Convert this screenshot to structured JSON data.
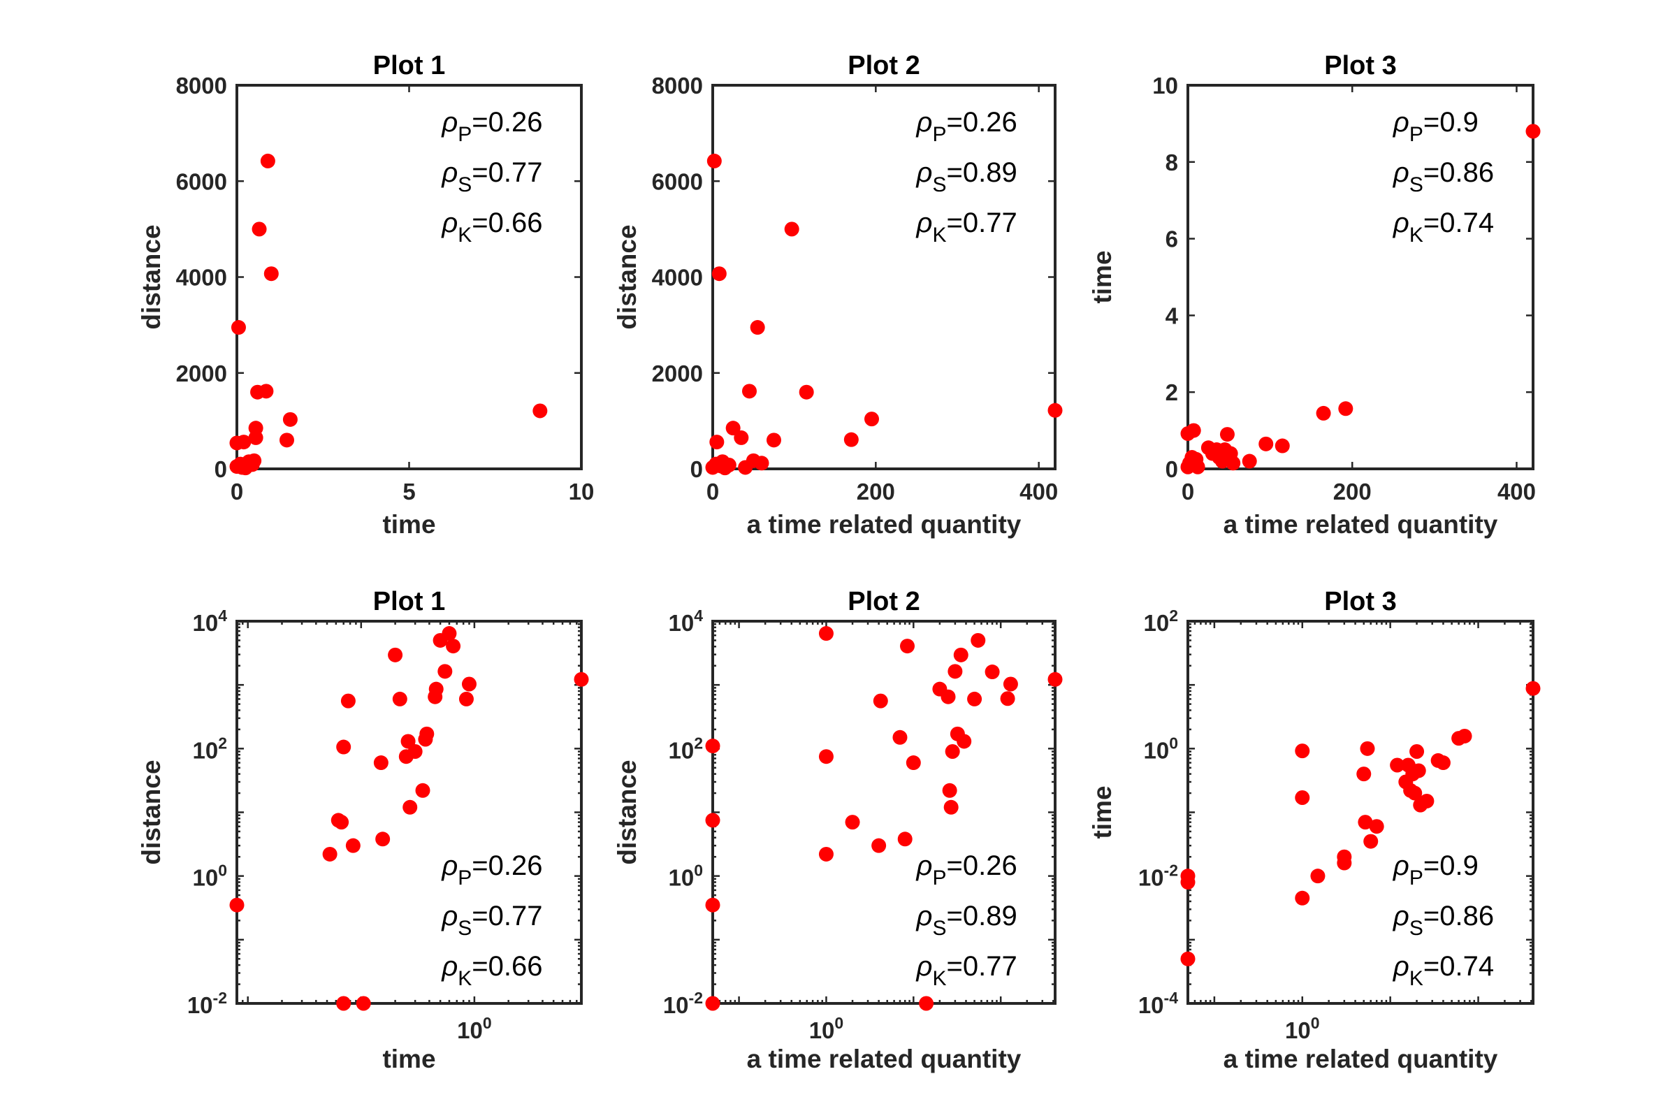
{
  "chart_data": [
    {
      "type": "scatter",
      "title": "Plot 1",
      "xlabel": "time",
      "ylabel": "distance",
      "xscale": "linear",
      "yscale": "linear",
      "xlim": [
        0,
        10
      ],
      "ylim": [
        0,
        8000
      ],
      "xticks": [
        0,
        5,
        10
      ],
      "xticklabels": [
        "0",
        "5",
        "10"
      ],
      "yticks": [
        0,
        2000,
        4000,
        6000,
        8000
      ],
      "yticklabels": [
        "0",
        "2000",
        "4000",
        "6000",
        "8000"
      ],
      "annotation_position": "top-right",
      "correlations": [
        {
          "symbol": "ρ",
          "sub": "P",
          "value": "=0.26"
        },
        {
          "symbol": "ρ",
          "sub": "S",
          "value": "=0.77"
        },
        {
          "symbol": "ρ",
          "sub": "K",
          "value": "=0.66"
        }
      ],
      "series": [
        {
          "name": "data",
          "color": "#ff0000",
          "points": [
            [
              0.0,
              540
            ],
            [
              0.0,
              50
            ],
            [
              0.05,
              2950
            ],
            [
              0.1,
              100
            ],
            [
              0.15,
              30
            ],
            [
              0.2,
              560
            ],
            [
              0.25,
              20
            ],
            [
              0.3,
              80
            ],
            [
              0.35,
              150
            ],
            [
              0.4,
              120
            ],
            [
              0.45,
              90
            ],
            [
              0.5,
              170
            ],
            [
              0.55,
              650
            ],
            [
              0.55,
              850
            ],
            [
              0.6,
              1600
            ],
            [
              0.65,
              5000
            ],
            [
              0.85,
              1620
            ],
            [
              0.9,
              6420
            ],
            [
              1.0,
              4070
            ],
            [
              1.45,
              600
            ],
            [
              1.55,
              1030
            ],
            [
              8.8,
              1210
            ]
          ]
        }
      ]
    },
    {
      "type": "scatter",
      "title": "Plot 2",
      "xlabel": "a time related quantity",
      "ylabel": "distance",
      "xscale": "linear",
      "yscale": "linear",
      "xlim": [
        0,
        420
      ],
      "ylim": [
        0,
        8000
      ],
      "xticks": [
        0,
        200,
        400
      ],
      "xticklabels": [
        "0",
        "200",
        "400"
      ],
      "yticks": [
        0,
        2000,
        4000,
        6000,
        8000
      ],
      "yticklabels": [
        "0",
        "2000",
        "4000",
        "6000",
        "8000"
      ],
      "annotation_position": "top-right",
      "correlations": [
        {
          "symbol": "ρ",
          "sub": "P",
          "value": "=0.26"
        },
        {
          "symbol": "ρ",
          "sub": "S",
          "value": "=0.89"
        },
        {
          "symbol": "ρ",
          "sub": "K",
          "value": "=0.77"
        }
      ],
      "series": [
        {
          "name": "data",
          "color": "#ff0000",
          "points": [
            [
              0,
              30
            ],
            [
              2,
              6420
            ],
            [
              4,
              100
            ],
            [
              5,
              560
            ],
            [
              8,
              4070
            ],
            [
              10,
              60
            ],
            [
              12,
              150
            ],
            [
              15,
              20
            ],
            [
              20,
              80
            ],
            [
              25,
              850
            ],
            [
              35,
              650
            ],
            [
              40,
              30
            ],
            [
              45,
              1620
            ],
            [
              50,
              170
            ],
            [
              55,
              2950
            ],
            [
              60,
              120
            ],
            [
              75,
              600
            ],
            [
              97,
              5000
            ],
            [
              115,
              1600
            ],
            [
              170,
              610
            ],
            [
              195,
              1040
            ],
            [
              420,
              1220
            ]
          ]
        }
      ]
    },
    {
      "type": "scatter",
      "title": "Plot 3",
      "xlabel": "a time related quantity",
      "ylabel": "time",
      "xscale": "linear",
      "yscale": "linear",
      "xlim": [
        0,
        420
      ],
      "ylim": [
        0,
        10
      ],
      "xticks": [
        0,
        200,
        400
      ],
      "xticklabels": [
        "0",
        "200",
        "400"
      ],
      "yticks": [
        0,
        2,
        4,
        6,
        8,
        10
      ],
      "yticklabels": [
        "0",
        "2",
        "4",
        "6",
        "8",
        "10"
      ],
      "annotation_position": "top-right",
      "correlations": [
        {
          "symbol": "ρ",
          "sub": "P",
          "value": "=0.9"
        },
        {
          "symbol": "ρ",
          "sub": "S",
          "value": "=0.86"
        },
        {
          "symbol": "ρ",
          "sub": "K",
          "value": "=0.74"
        }
      ],
      "series": [
        {
          "name": "data",
          "color": "#ff0000",
          "points": [
            [
              0,
              0.92
            ],
            [
              0,
              0.05
            ],
            [
              2,
              0.15
            ],
            [
              5,
              0.3
            ],
            [
              7,
              1.0
            ],
            [
              8,
              0.1
            ],
            [
              10,
              0.25
            ],
            [
              12,
              0.05
            ],
            [
              25,
              0.55
            ],
            [
              30,
              0.4
            ],
            [
              35,
              0.5
            ],
            [
              38,
              0.3
            ],
            [
              42,
              0.2
            ],
            [
              45,
              0.5
            ],
            [
              48,
              0.9
            ],
            [
              52,
              0.4
            ],
            [
              55,
              0.15
            ],
            [
              75,
              0.2
            ],
            [
              95,
              0.65
            ],
            [
              115,
              0.6
            ],
            [
              165,
              1.45
            ],
            [
              192,
              1.57
            ],
            [
              420,
              8.8
            ]
          ]
        }
      ]
    },
    {
      "type": "scatter",
      "title": "Plot 1",
      "xlabel": "time",
      "ylabel": "distance",
      "xscale": "log",
      "yscale": "log",
      "xlim": [
        0.008,
        8.8
      ],
      "ylim": [
        0.01,
        10000
      ],
      "xticks": [
        1
      ],
      "xtick_exponents": [
        {
          "base": "10",
          "exp": "0"
        }
      ],
      "yticks": [
        0.01,
        1,
        100,
        10000
      ],
      "ytick_exponents": [
        {
          "base": "10",
          "exp": "-2"
        },
        {
          "base": "10",
          "exp": "0"
        },
        {
          "base": "10",
          "exp": "2"
        },
        {
          "base": "10",
          "exp": "4"
        }
      ],
      "annotation_position": "bottom-right",
      "correlations": [
        {
          "symbol": "ρ",
          "sub": "P",
          "value": "=0.26"
        },
        {
          "symbol": "ρ",
          "sub": "S",
          "value": "=0.77"
        },
        {
          "symbol": "ρ",
          "sub": "K",
          "value": "=0.66"
        }
      ],
      "series": [
        {
          "name": "data",
          "color": "#ff0000",
          "points": [
            [
              0.008,
              0.35
            ],
            [
              0.053,
              2.2
            ],
            [
              0.063,
              7.5
            ],
            [
              0.067,
              7
            ],
            [
              0.07,
              0.01
            ],
            [
              0.07,
              106
            ],
            [
              0.077,
              560
            ],
            [
              0.085,
              3
            ],
            [
              0.105,
              0.01
            ],
            [
              0.15,
              60
            ],
            [
              0.155,
              3.8
            ],
            [
              0.2,
              2950
            ],
            [
              0.22,
              600
            ],
            [
              0.25,
              75
            ],
            [
              0.26,
              130
            ],
            [
              0.27,
              12
            ],
            [
              0.3,
              90
            ],
            [
              0.35,
              22
            ],
            [
              0.37,
              140
            ],
            [
              0.38,
              170
            ],
            [
              0.45,
              650
            ],
            [
              0.46,
              860
            ],
            [
              0.5,
              5000
            ],
            [
              0.55,
              1630
            ],
            [
              0.6,
              6420
            ],
            [
              0.65,
              4070
            ],
            [
              0.85,
              600
            ],
            [
              0.9,
              1030
            ],
            [
              8.8,
              1220
            ]
          ]
        }
      ]
    },
    {
      "type": "scatter",
      "title": "Plot 2",
      "xlabel": "a time related quantity",
      "ylabel": "distance",
      "xscale": "log",
      "yscale": "log",
      "xlim": [
        0.05,
        420
      ],
      "ylim": [
        0.01,
        10000
      ],
      "xticks": [
        1
      ],
      "xtick_exponents": [
        {
          "base": "10",
          "exp": "0"
        }
      ],
      "yticks": [
        0.01,
        1,
        100,
        10000
      ],
      "ytick_exponents": [
        {
          "base": "10",
          "exp": "-2"
        },
        {
          "base": "10",
          "exp": "0"
        },
        {
          "base": "10",
          "exp": "2"
        },
        {
          "base": "10",
          "exp": "4"
        }
      ],
      "annotation_position": "bottom-right",
      "correlations": [
        {
          "symbol": "ρ",
          "sub": "P",
          "value": "=0.26"
        },
        {
          "symbol": "ρ",
          "sub": "S",
          "value": "=0.89"
        },
        {
          "symbol": "ρ",
          "sub": "K",
          "value": "=0.77"
        }
      ],
      "series": [
        {
          "name": "data",
          "color": "#ff0000",
          "points": [
            [
              0.05,
              0.01
            ],
            [
              0.05,
              0.35
            ],
            [
              0.05,
              7.5
            ],
            [
              0.05,
              110
            ],
            [
              1,
              6420
            ],
            [
              1,
              75
            ],
            [
              1,
              2.2
            ],
            [
              2,
              7
            ],
            [
              4,
              3
            ],
            [
              4.2,
              560
            ],
            [
              7,
              150
            ],
            [
              8,
              3.8
            ],
            [
              8.5,
              4070
            ],
            [
              10,
              60
            ],
            [
              14,
              0.01
            ],
            [
              20,
              860
            ],
            [
              25,
              650
            ],
            [
              26,
              22
            ],
            [
              27,
              12
            ],
            [
              28,
              90
            ],
            [
              30,
              1630
            ],
            [
              32,
              170
            ],
            [
              35,
              2950
            ],
            [
              38,
              130
            ],
            [
              50,
              600
            ],
            [
              55,
              5000
            ],
            [
              80,
              1600
            ],
            [
              120,
              610
            ],
            [
              130,
              1030
            ],
            [
              420,
              1220
            ]
          ]
        }
      ]
    },
    {
      "type": "scatter",
      "title": "Plot 3",
      "xlabel": "a time related quantity",
      "ylabel": "time",
      "xscale": "log",
      "yscale": "log",
      "xlim": [
        0.05,
        420
      ],
      "ylim": [
        0.0001,
        100
      ],
      "xticks": [
        1
      ],
      "xtick_exponents": [
        {
          "base": "10",
          "exp": "0"
        }
      ],
      "yticks": [
        0.0001,
        0.01,
        1,
        100
      ],
      "ytick_exponents": [
        {
          "base": "10",
          "exp": "-4"
        },
        {
          "base": "10",
          "exp": "-2"
        },
        {
          "base": "10",
          "exp": "0"
        },
        {
          "base": "10",
          "exp": "2"
        }
      ],
      "annotation_position": "bottom-right",
      "correlations": [
        {
          "symbol": "ρ",
          "sub": "P",
          "value": "=0.9"
        },
        {
          "symbol": "ρ",
          "sub": "S",
          "value": "=0.86"
        },
        {
          "symbol": "ρ",
          "sub": "K",
          "value": "=0.74"
        }
      ],
      "series": [
        {
          "name": "data",
          "color": "#ff0000",
          "points": [
            [
              0.05,
              0.0005
            ],
            [
              0.05,
              0.008
            ],
            [
              0.05,
              0.01
            ],
            [
              1,
              0.92
            ],
            [
              1,
              0.17
            ],
            [
              1,
              0.0045
            ],
            [
              1.5,
              0.01
            ],
            [
              3,
              0.02
            ],
            [
              3,
              0.016
            ],
            [
              5,
              0.4
            ],
            [
              5.2,
              0.07
            ],
            [
              5.5,
              1.0
            ],
            [
              6,
              0.035
            ],
            [
              7,
              0.06
            ],
            [
              12,
              0.55
            ],
            [
              15,
              0.3
            ],
            [
              16,
              0.55
            ],
            [
              17,
              0.22
            ],
            [
              18,
              0.4
            ],
            [
              19,
              0.2
            ],
            [
              20,
              0.9
            ],
            [
              21,
              0.45
            ],
            [
              22,
              0.13
            ],
            [
              26,
              0.15
            ],
            [
              35,
              0.65
            ],
            [
              40,
              0.6
            ],
            [
              60,
              1.45
            ],
            [
              70,
              1.57
            ],
            [
              420,
              8.8
            ]
          ]
        }
      ]
    }
  ]
}
